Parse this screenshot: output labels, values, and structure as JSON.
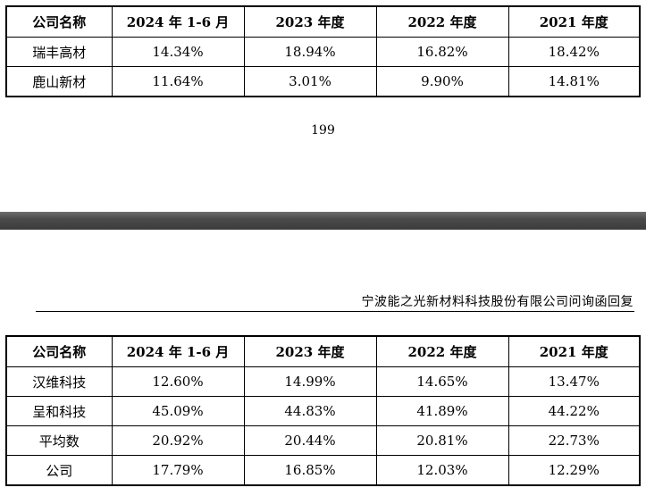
{
  "page_top": {
    "table": {
      "headers": [
        "公司名称",
        "2024 年 1-6 月",
        "2023 年度",
        "2022 年度",
        "2021 年度"
      ],
      "rows": [
        [
          "瑞丰高材",
          "14.34%",
          "18.94%",
          "16.82%",
          "18.42%"
        ],
        [
          "鹿山新材",
          "11.64%",
          "3.01%",
          "9.90%",
          "14.81%"
        ]
      ]
    },
    "page_number": "199"
  },
  "page_bottom": {
    "running_header": "宁波能之光新材料科技股份有限公司问询函回复",
    "table": {
      "headers": [
        "公司名称",
        "2024 年 1-6 月",
        "2023 年度",
        "2022 年度",
        "2021 年度"
      ],
      "rows": [
        [
          "汉维科技",
          "12.60%",
          "14.99%",
          "14.65%",
          "13.47%"
        ],
        [
          "呈和科技",
          "45.09%",
          "44.83%",
          "41.89%",
          "44.22%"
        ],
        [
          "平均数",
          "20.92%",
          "20.44%",
          "20.81%",
          "22.73%"
        ],
        [
          "公司",
          "17.79%",
          "16.85%",
          "12.03%",
          "12.29%"
        ]
      ]
    }
  }
}
